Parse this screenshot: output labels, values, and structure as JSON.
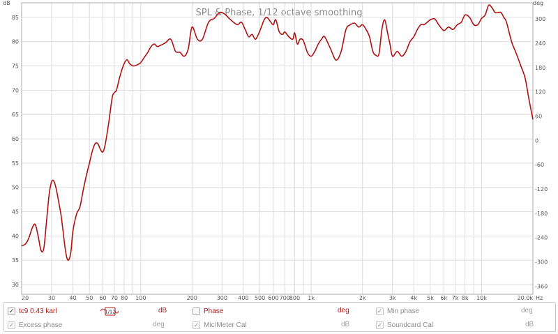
{
  "chart_data": {
    "type": "line",
    "title": "SPL & Phase, 1/12 octave smoothing",
    "ylabel": "dB",
    "y2label": "deg",
    "xunit": "Hz",
    "xscale": "log",
    "xlim": [
      20,
      20000
    ],
    "ylim": [
      28,
      88
    ],
    "y2lim": [
      -380,
      340
    ],
    "x_ticks": [
      20,
      30,
      40,
      50,
      60,
      70,
      80,
      100,
      200,
      300,
      400,
      500,
      600,
      700,
      800,
      1000,
      2000,
      3000,
      4000,
      5000,
      6000,
      7000,
      8000,
      10000,
      20000
    ],
    "x_tick_labels": [
      "20",
      "30",
      "40",
      "50",
      "60",
      "70",
      "80",
      "100",
      "200",
      "300",
      "400",
      "500",
      "600",
      "700",
      "800",
      "1k",
      "2k",
      "3k",
      "4k",
      "5k",
      "6k",
      "7k",
      "8k",
      "10k",
      "20.0k"
    ],
    "y_ticks": [
      30,
      35,
      40,
      45,
      50,
      55,
      60,
      65,
      70,
      75,
      80,
      85
    ],
    "y2_ticks": [
      -360,
      -300,
      -240,
      -180,
      -120,
      -60,
      0,
      60,
      120,
      180,
      240,
      300
    ],
    "grid": true,
    "series": [
      {
        "name": "tc9 0.43 karl",
        "color": "#b01010",
        "x": [
          20,
          21,
          22,
          23,
          24,
          25,
          26,
          27,
          28,
          29,
          30,
          31,
          32,
          33,
          34,
          35,
          36,
          37,
          38,
          39,
          40,
          42,
          44,
          46,
          48,
          50,
          52,
          54,
          56,
          58,
          60,
          62,
          65,
          68,
          70,
          72,
          75,
          78,
          80,
          83,
          86,
          90,
          95,
          100,
          105,
          110,
          115,
          120,
          125,
          130,
          140,
          150,
          160,
          170,
          180,
          190,
          200,
          215,
          230,
          250,
          270,
          290,
          310,
          330,
          350,
          370,
          390,
          410,
          430,
          450,
          470,
          490,
          510,
          530,
          550,
          580,
          600,
          620,
          650,
          680,
          700,
          740,
          780,
          800,
          830,
          860,
          900,
          950,
          1000,
          1050,
          1100,
          1150,
          1200,
          1300,
          1400,
          1500,
          1600,
          1700,
          1800,
          1900,
          2000,
          2100,
          2200,
          2300,
          2400,
          2500,
          2600,
          2700,
          2800,
          2900,
          3000,
          3200,
          3400,
          3600,
          3800,
          4000,
          4200,
          4400,
          4600,
          4800,
          5000,
          5300,
          5600,
          6000,
          6400,
          6800,
          7200,
          7600,
          8000,
          8500,
          9000,
          9500,
          10000,
          10500,
          11000,
          11500,
          12000,
          12500,
          13000,
          13500,
          14000,
          15000,
          16000,
          17000,
          18000,
          19000,
          20000
        ],
        "values": [
          38.0,
          38.3,
          39.5,
          41.5,
          42.4,
          40.0,
          37.0,
          37.5,
          43.0,
          48.5,
          51.2,
          51.2,
          49.5,
          47.0,
          44.5,
          41.0,
          37.5,
          35.3,
          35.2,
          37.0,
          41.0,
          44.5,
          46.0,
          49.5,
          52.5,
          55.0,
          57.5,
          59.0,
          59.0,
          57.8,
          57.3,
          59.0,
          63.5,
          68.5,
          69.5,
          70.0,
          72.5,
          74.5,
          75.5,
          76.3,
          75.5,
          75.0,
          75.2,
          75.7,
          76.8,
          77.8,
          79.0,
          79.5,
          79.0,
          79.2,
          79.8,
          80.5,
          78.0,
          77.8,
          77.0,
          78.5,
          83.0,
          80.5,
          80.5,
          84.0,
          84.8,
          86.0,
          85.7,
          84.8,
          84.0,
          83.5,
          84.0,
          82.5,
          81.0,
          81.5,
          80.5,
          81.5,
          83.0,
          84.5,
          85.0,
          84.0,
          83.5,
          84.5,
          82.0,
          81.5,
          82.0,
          81.0,
          80.5,
          81.8,
          79.5,
          80.5,
          80.2,
          77.8,
          77.0,
          78.0,
          79.5,
          80.5,
          81.0,
          78.5,
          76.2,
          78.0,
          82.5,
          83.5,
          83.8,
          83.0,
          83.5,
          82.5,
          81.0,
          78.0,
          77.2,
          77.5,
          82.5,
          84.5,
          82.0,
          79.5,
          77.0,
          78.0,
          77.0,
          78.0,
          80.0,
          81.0,
          82.5,
          83.5,
          83.5,
          84.0,
          84.5,
          84.7,
          83.5,
          82.3,
          83.0,
          82.5,
          83.5,
          84.0,
          85.5,
          85.0,
          83.5,
          83.5,
          84.8,
          85.5,
          87.5,
          87.0,
          86.0,
          86.0,
          86.0,
          85.0,
          84.0,
          80.0,
          77.5,
          75.0,
          72.5,
          68.0,
          64.0
        ]
      }
    ]
  },
  "legend": {
    "items": [
      {
        "label": "tc9 0.43 karl",
        "checked": true,
        "unit": "dB",
        "enabled": true
      },
      {
        "label": "Phase",
        "checked": false,
        "unit": "deg",
        "enabled": true
      },
      {
        "label": "Min phase",
        "checked": true,
        "unit": "deg",
        "enabled": false
      },
      {
        "label": "Excess phase",
        "checked": true,
        "unit": "deg",
        "enabled": false
      },
      {
        "label": "Mic/Meter Cal",
        "checked": true,
        "unit": "dB",
        "enabled": false
      },
      {
        "label": "Soundcard Cal",
        "checked": true,
        "unit": "dB",
        "enabled": false
      }
    ],
    "smoothing": "1/12"
  },
  "colors": {
    "curve": "#b01010",
    "grid": "#dddddd",
    "frame": "#a9a9a9",
    "label_active": "#b31b1b",
    "label_disabled": "#8c8c8c"
  }
}
